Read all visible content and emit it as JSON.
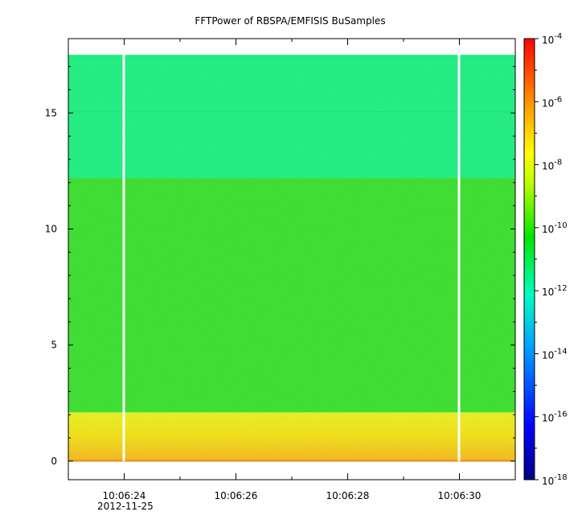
{
  "chart_data": {
    "type": "heatmap",
    "title": "FFTPower of RBSPA/EMFISIS  BuSamples",
    "x_tick_labels": [
      "10:06:24",
      "10:06:26",
      "10:06:28",
      "10:06:30"
    ],
    "x_date_label": "2012-11-25",
    "x_range_seconds_label": [
      "10:06:23.0",
      "10:06:31.0"
    ],
    "y_ticks": [
      0,
      5,
      10,
      15
    ],
    "y_range": [
      -0.8,
      18.2
    ],
    "data_y_extent": [
      0,
      17.5
    ],
    "colorbar": {
      "scale": "log",
      "range": [
        "1e-18",
        "1e-4"
      ],
      "tick_labels": [
        {
          "base": "10",
          "exp": "-4"
        },
        {
          "base": "10",
          "exp": "-6"
        },
        {
          "base": "10",
          "exp": "-8"
        },
        {
          "base": "10",
          "exp": "-10"
        },
        {
          "base": "10",
          "exp": "-12"
        },
        {
          "base": "10",
          "exp": "-14"
        },
        {
          "base": "10",
          "exp": "-16"
        },
        {
          "base": "10",
          "exp": "-18"
        }
      ]
    },
    "bands": [
      {
        "y_from": 0,
        "y_to": 2.1,
        "level": "1e-8.5"
      },
      {
        "y_from": 2.1,
        "y_to": 12.2,
        "level": "1e-10.5"
      },
      {
        "y_from": 12.2,
        "y_to": 17.5,
        "level": "1e-12"
      }
    ],
    "gaps_at": [
      "10:06:24",
      "10:06:30"
    ],
    "grid": false
  }
}
